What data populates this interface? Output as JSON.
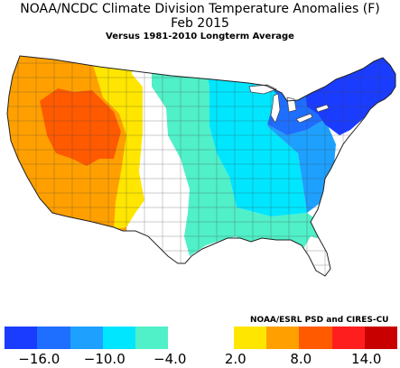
{
  "title": "NOAA/NCDC Climate Division Temperature Anomalies (F)",
  "subtitle": "Feb 2015",
  "note": "Versus 1981-2010 Longterm Average",
  "credit": "NOAA/ESRL PSD and CIRES-CU",
  "legend": {
    "colors": [
      "#1a3cff",
      "#1e6eff",
      "#1ea0ff",
      "#00e6ff",
      "#50f0c8",
      "#ffffff",
      "#ffffff",
      "#ffe600",
      "#ffa000",
      "#ff5a00",
      "#ff1e1e",
      "#c80000"
    ],
    "tick_labels": [
      "−16.0",
      "−10.0",
      "−4.0",
      "2.0",
      "8.0",
      "14.0"
    ]
  },
  "colors": {
    "outline": "#444444"
  }
}
